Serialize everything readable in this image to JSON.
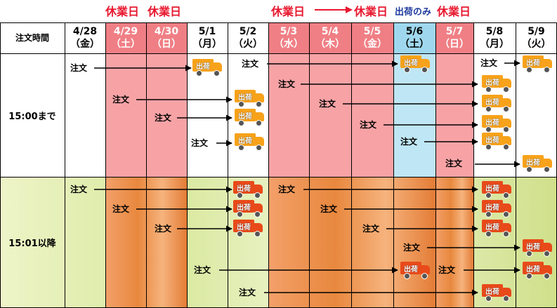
{
  "holiday_label": "休業日",
  "shipping_only_label": "出荷のみ",
  "header": {
    "time_label": "注文時間",
    "dates": [
      {
        "date": "4/28",
        "dow": "（金）"
      },
      {
        "date": "4/29",
        "dow": "（土）"
      },
      {
        "date": "4/30",
        "dow": "（日）"
      },
      {
        "date": "5/1",
        "dow": "（月）"
      },
      {
        "date": "5/2",
        "dow": "（火）"
      },
      {
        "date": "5/3",
        "dow": "（水）"
      },
      {
        "date": "5/4",
        "dow": "（木）"
      },
      {
        "date": "5/5",
        "dow": "（金）"
      },
      {
        "date": "5/6",
        "dow": "（土）"
      },
      {
        "date": "5/7",
        "dow": "（日）"
      },
      {
        "date": "5/8",
        "dow": "（月）"
      },
      {
        "date": "5/9",
        "dow": "（火）"
      }
    ]
  },
  "rows": {
    "until": "15:00まで",
    "after": "15:01以降"
  },
  "order_label": "注文",
  "ship_label": "出荷",
  "colors": {
    "holiday_red": "#e8182f",
    "holiday_fill": "#f7a3a6",
    "ship_only_fill": "#bfe6f4",
    "truck": "#f7a21a"
  }
}
